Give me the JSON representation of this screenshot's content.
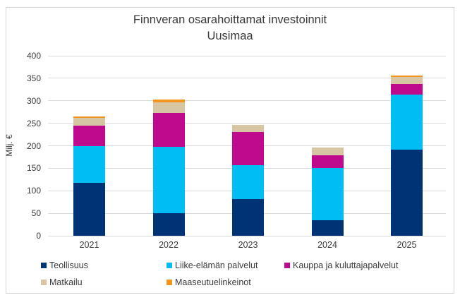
{
  "title": {
    "line1": "Finnveran osarahoittamat investoinnit",
    "line2": "Uusimaa"
  },
  "y_axis": {
    "label": "Milj. €",
    "ticks": [
      0,
      50,
      100,
      150,
      200,
      250,
      300,
      350,
      400
    ]
  },
  "chart_data": {
    "type": "bar",
    "stacked": true,
    "title": "Finnveran osarahoittamat investoinnit Uusimaa",
    "xlabel": "",
    "ylabel": "Milj. €",
    "ylim": [
      0,
      400
    ],
    "ytick_step": 50,
    "grid": true,
    "legend_position": "bottom",
    "categories": [
      "2021",
      "2022",
      "2023",
      "2024",
      "2025"
    ],
    "series": [
      {
        "name": "Teollisuus",
        "color": "#003375",
        "values": [
          117,
          50,
          82,
          34,
          192
        ]
      },
      {
        "name": "Liike-elämän palvelut",
        "color": "#00bef3",
        "values": [
          83,
          148,
          75,
          116,
          121
        ]
      },
      {
        "name": "Kauppa ja kuluttajapalvelut",
        "color": "#c00a8e",
        "values": [
          45,
          75,
          74,
          29,
          24
        ]
      },
      {
        "name": "Matkailu",
        "color": "#d6c6a3",
        "values": [
          17,
          24,
          16,
          17,
          16
        ]
      },
      {
        "name": "Maaseutuelinkeinot",
        "color": "#f5941f",
        "values": [
          3,
          6,
          0,
          0,
          3
        ]
      }
    ],
    "totals": [
      265,
      303,
      247,
      196,
      356
    ]
  },
  "colors": {
    "grid": "#dadada",
    "border": "#d4d4d4",
    "text": "#3a3a3a",
    "background": "#ffffff"
  }
}
